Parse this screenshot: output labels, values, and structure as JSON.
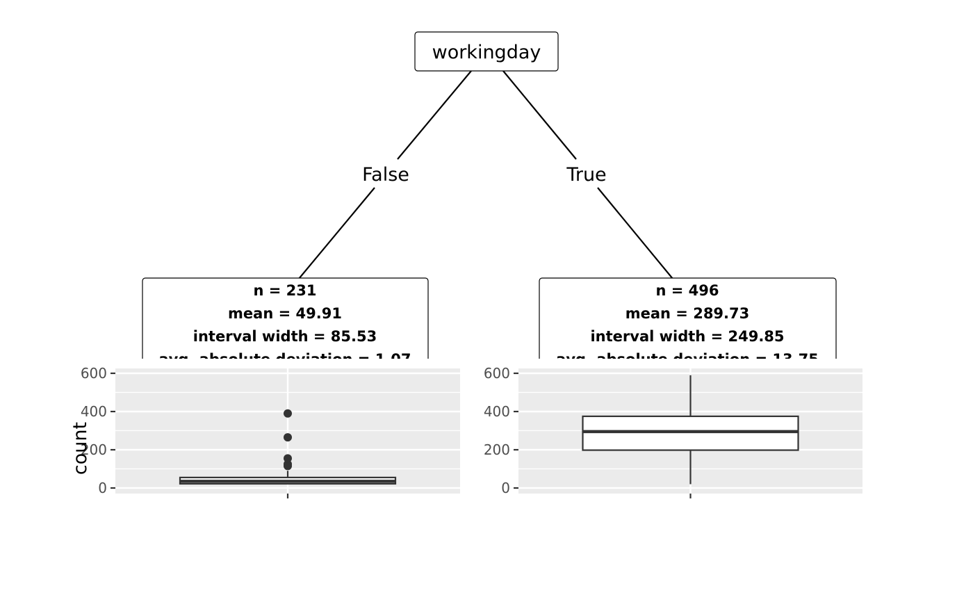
{
  "tree": {
    "root": {
      "label": "workingday"
    },
    "edges": [
      {
        "label": "False"
      },
      {
        "label": "True"
      }
    ],
    "leaves": [
      {
        "lines": [
          "n = 231",
          "mean = 49.91",
          "interval width = 85.53",
          "avg. absolute deviation = 1.07"
        ]
      },
      {
        "lines": [
          "n = 496",
          "mean = 289.73",
          "interval width = 249.85",
          "avg. absolute deviation = 13.75"
        ]
      }
    ]
  },
  "chart_data": [
    {
      "type": "boxplot",
      "ylabel": "count",
      "ylim": [
        0,
        600
      ],
      "yticks": [
        0,
        200,
        400,
        600
      ],
      "grid": true,
      "box": {
        "q1": 22,
        "median": 35,
        "q3": 55,
        "whisker_low": 20,
        "whisker_high": 90
      },
      "outliers": [
        115,
        125,
        155,
        265,
        390
      ]
    },
    {
      "type": "boxplot",
      "ylabel": "",
      "ylim": [
        0,
        600
      ],
      "yticks": [
        0,
        200,
        400,
        600
      ],
      "grid": true,
      "box": {
        "q1": 198,
        "median": 295,
        "q3": 375,
        "whisker_low": 20,
        "whisker_high": 590
      },
      "outliers": []
    }
  ]
}
